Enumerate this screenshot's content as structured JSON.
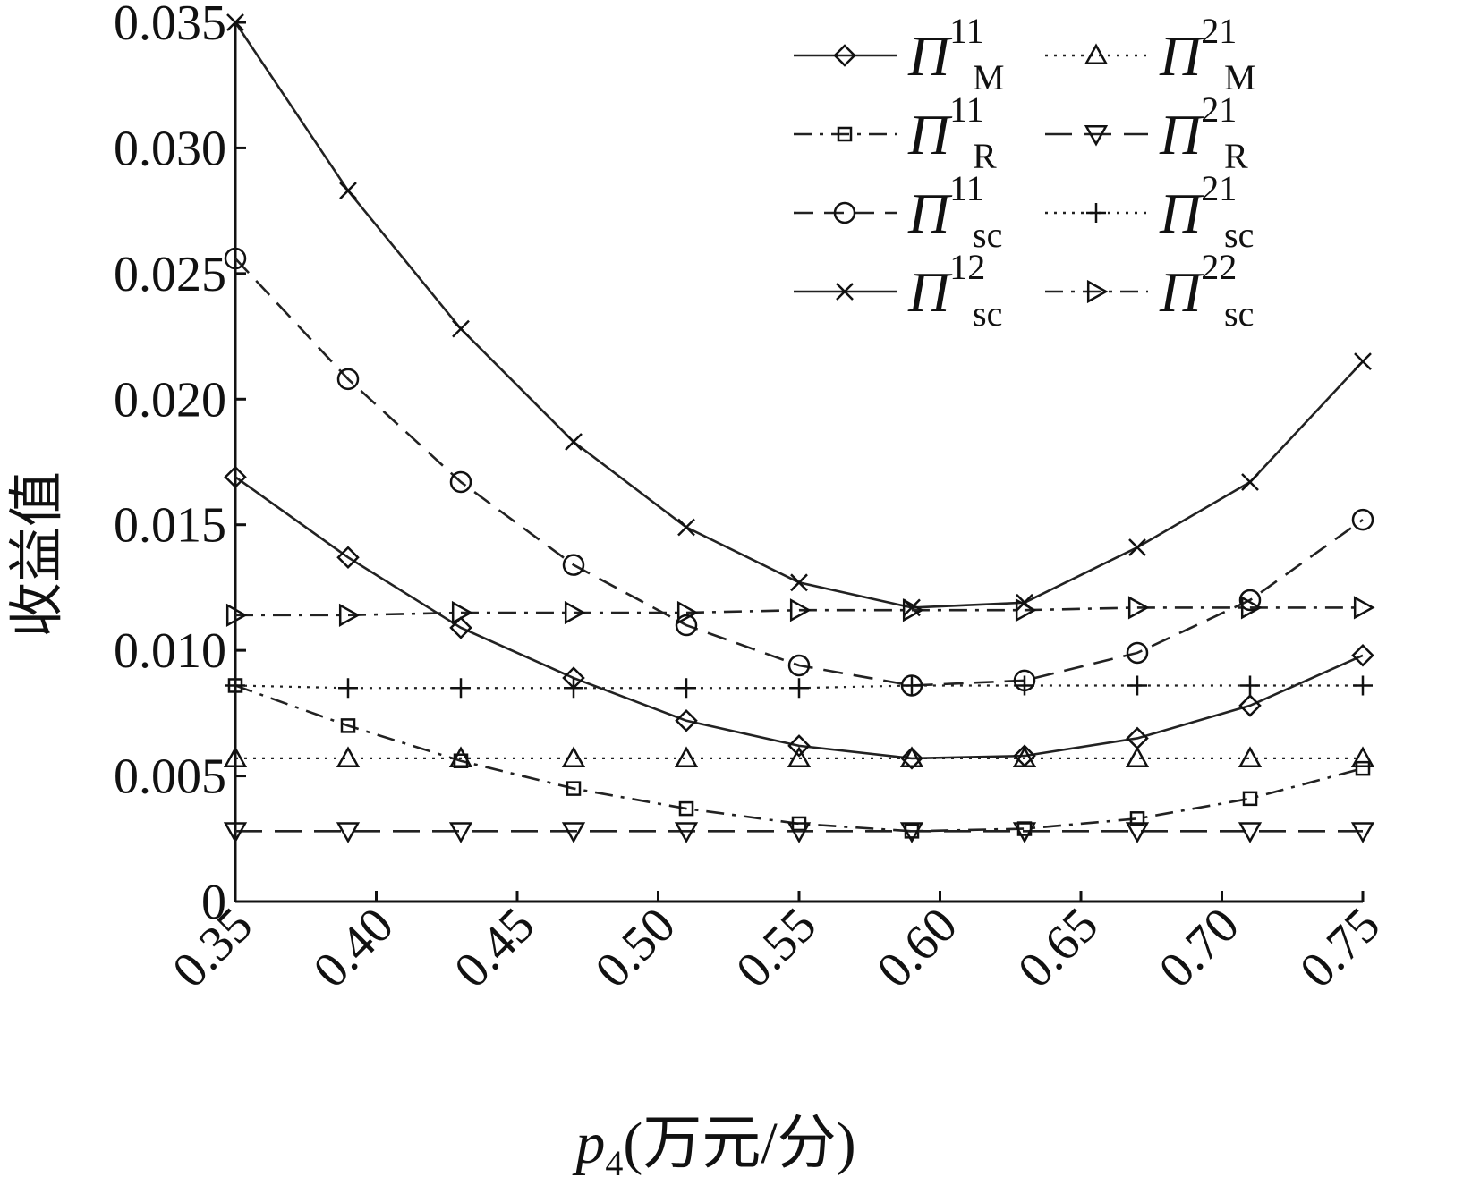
{
  "chart_data": {
    "type": "line",
    "title": "",
    "xlabel": {
      "symbol": "p",
      "sub": "4",
      "unit": "(万元/分)"
    },
    "ylabel": "收益值",
    "xlim": [
      0.35,
      0.75
    ],
    "ylim": [
      0,
      0.035
    ],
    "x_ticks": [
      "0.35",
      "0.40",
      "0.45",
      "0.50",
      "0.55",
      "0.60",
      "0.65",
      "0.70",
      "0.75"
    ],
    "y_ticks": [
      "0",
      "0.005",
      "0.010",
      "0.015",
      "0.020",
      "0.025",
      "0.030",
      "0.035"
    ],
    "grid": false,
    "legend_position": "top-right",
    "x": [
      0.35,
      0.39,
      0.43,
      0.47,
      0.51,
      0.55,
      0.59,
      0.63,
      0.67,
      0.71,
      0.75
    ],
    "series": [
      {
        "name": "Π",
        "sup": "11",
        "sub": "M",
        "marker": "diamond",
        "line": "solid",
        "values": [
          0.0169,
          0.0137,
          0.0109,
          0.0089,
          0.0072,
          0.0062,
          0.0057,
          0.0058,
          0.0065,
          0.0078,
          0.0098
        ]
      },
      {
        "name": "Π",
        "sup": "11",
        "sub": "R",
        "marker": "square",
        "line": "dashdot",
        "values": [
          0.0086,
          0.007,
          0.0056,
          0.0045,
          0.0037,
          0.0031,
          0.0028,
          0.0029,
          0.0033,
          0.0041,
          0.0053
        ]
      },
      {
        "name": "Π",
        "sup": "11",
        "sub": "sc",
        "marker": "circle",
        "line": "dashed",
        "values": [
          0.0256,
          0.0208,
          0.0167,
          0.0134,
          0.011,
          0.0094,
          0.0086,
          0.0088,
          0.0099,
          0.012,
          0.0152
        ]
      },
      {
        "name": "Π",
        "sup": "12",
        "sub": "sc",
        "marker": "x",
        "line": "solid",
        "values": [
          0.035,
          0.0283,
          0.0228,
          0.0183,
          0.0149,
          0.0127,
          0.0117,
          0.0119,
          0.0141,
          0.0167,
          0.0215
        ]
      },
      {
        "name": "Π",
        "sup": "21",
        "sub": "M",
        "marker": "triangle-up",
        "line": "dotted",
        "values": [
          0.0057,
          0.0057,
          0.0057,
          0.0057,
          0.0057,
          0.0057,
          0.0057,
          0.0057,
          0.0057,
          0.0057,
          0.0057
        ]
      },
      {
        "name": "Π",
        "sup": "21",
        "sub": "R",
        "marker": "triangle-down",
        "line": "longdash",
        "values": [
          0.0028,
          0.0028,
          0.0028,
          0.0028,
          0.0028,
          0.0028,
          0.0028,
          0.0028,
          0.0028,
          0.0028,
          0.0028
        ]
      },
      {
        "name": "Π",
        "sup": "21",
        "sub": "sc",
        "marker": "plus",
        "line": "dotted",
        "values": [
          0.0086,
          0.0085,
          0.0085,
          0.0085,
          0.0085,
          0.0085,
          0.0086,
          0.0086,
          0.0086,
          0.0086,
          0.0086
        ]
      },
      {
        "name": "Π",
        "sup": "22",
        "sub": "sc",
        "marker": "triangle-right",
        "line": "dashdot",
        "values": [
          0.0114,
          0.0114,
          0.0115,
          0.0115,
          0.0115,
          0.0116,
          0.0116,
          0.0116,
          0.0117,
          0.0117,
          0.0117
        ]
      }
    ]
  }
}
